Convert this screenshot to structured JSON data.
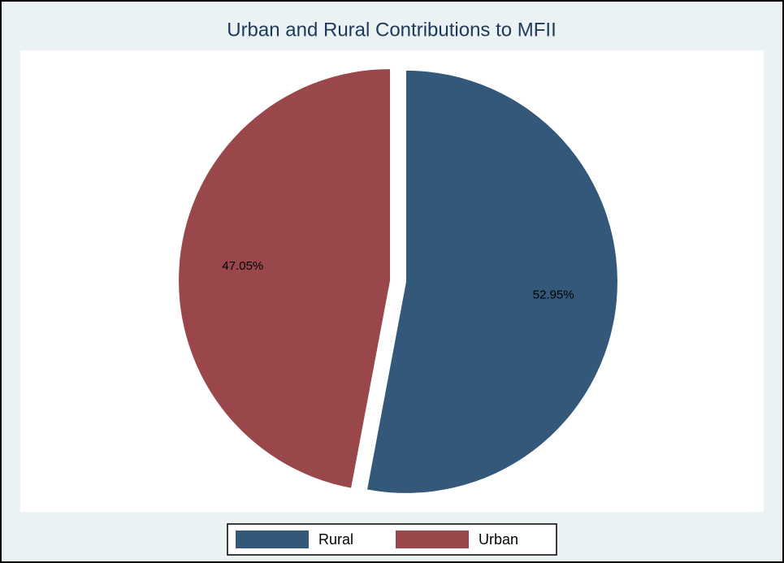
{
  "chart_data": {
    "type": "pie",
    "title": "Urban and Rural Contributions to MFII",
    "categories": [
      "Rural",
      "Urban"
    ],
    "values": [
      52.95,
      47.05
    ],
    "value_labels": [
      "52.95%",
      "47.05%"
    ],
    "colors": [
      "#33587a",
      "#9a474c"
    ],
    "legend": "bottom",
    "exploded": true
  }
}
